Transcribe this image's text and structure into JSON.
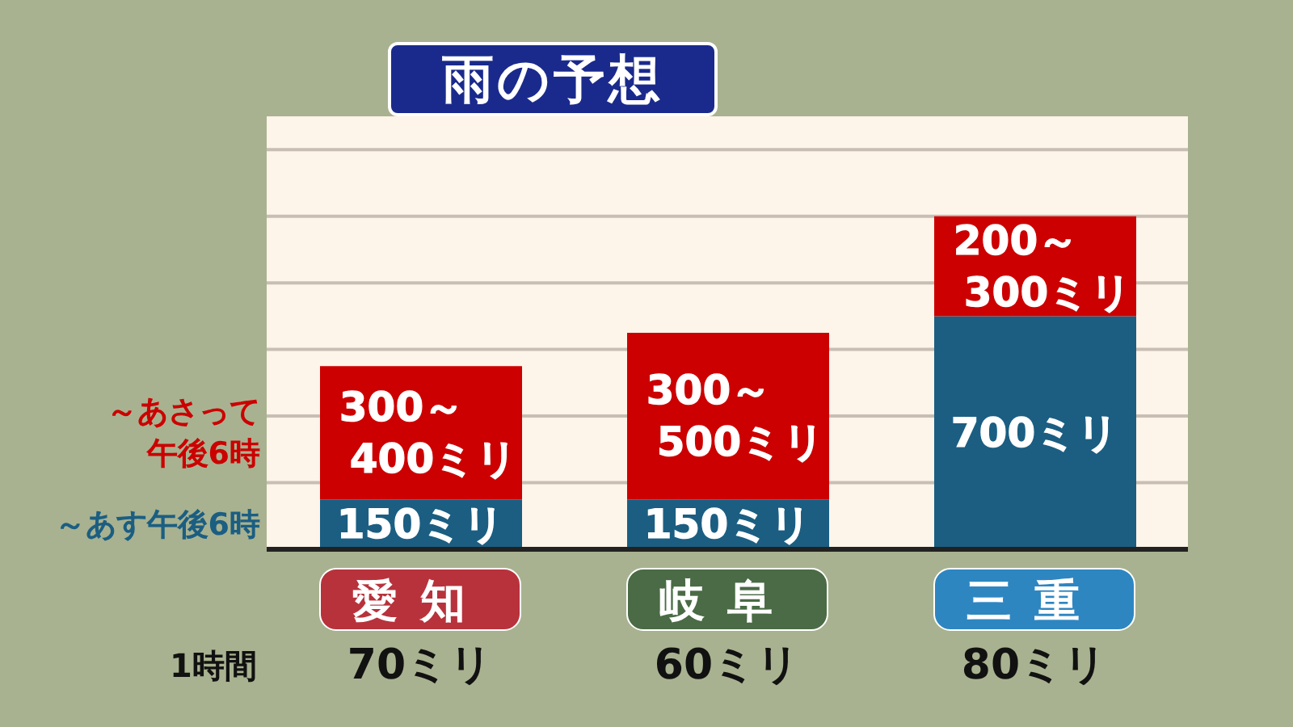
{
  "chart_data": {
    "type": "bar",
    "title": "雨の予想",
    "categories": [
      "愛知",
      "岐阜",
      "三重"
    ],
    "stacked": true,
    "series": [
      {
        "name": "～あす午後6時",
        "color": "#1b5e82",
        "values": [
          150,
          150,
          700
        ],
        "value_labels": [
          "150ミリ",
          "150ミリ",
          "700ミリ"
        ]
      },
      {
        "name": "～あさって午後6時",
        "color": "#cc0000",
        "values": [
          400,
          500,
          300
        ],
        "value_labels": [
          "300～\n400ミリ",
          "300～\n500ミリ",
          "200～\n300ミリ"
        ]
      }
    ],
    "ylim": [
      0,
      1300
    ],
    "yticks": [
      0,
      200,
      400,
      600,
      800,
      1000,
      1200
    ],
    "tick_labels": "x",
    "grid": "y",
    "legend": "left",
    "annotations": [
      "1時間",
      "70ミリ",
      "60ミリ",
      "80ミリ"
    ]
  }
}
